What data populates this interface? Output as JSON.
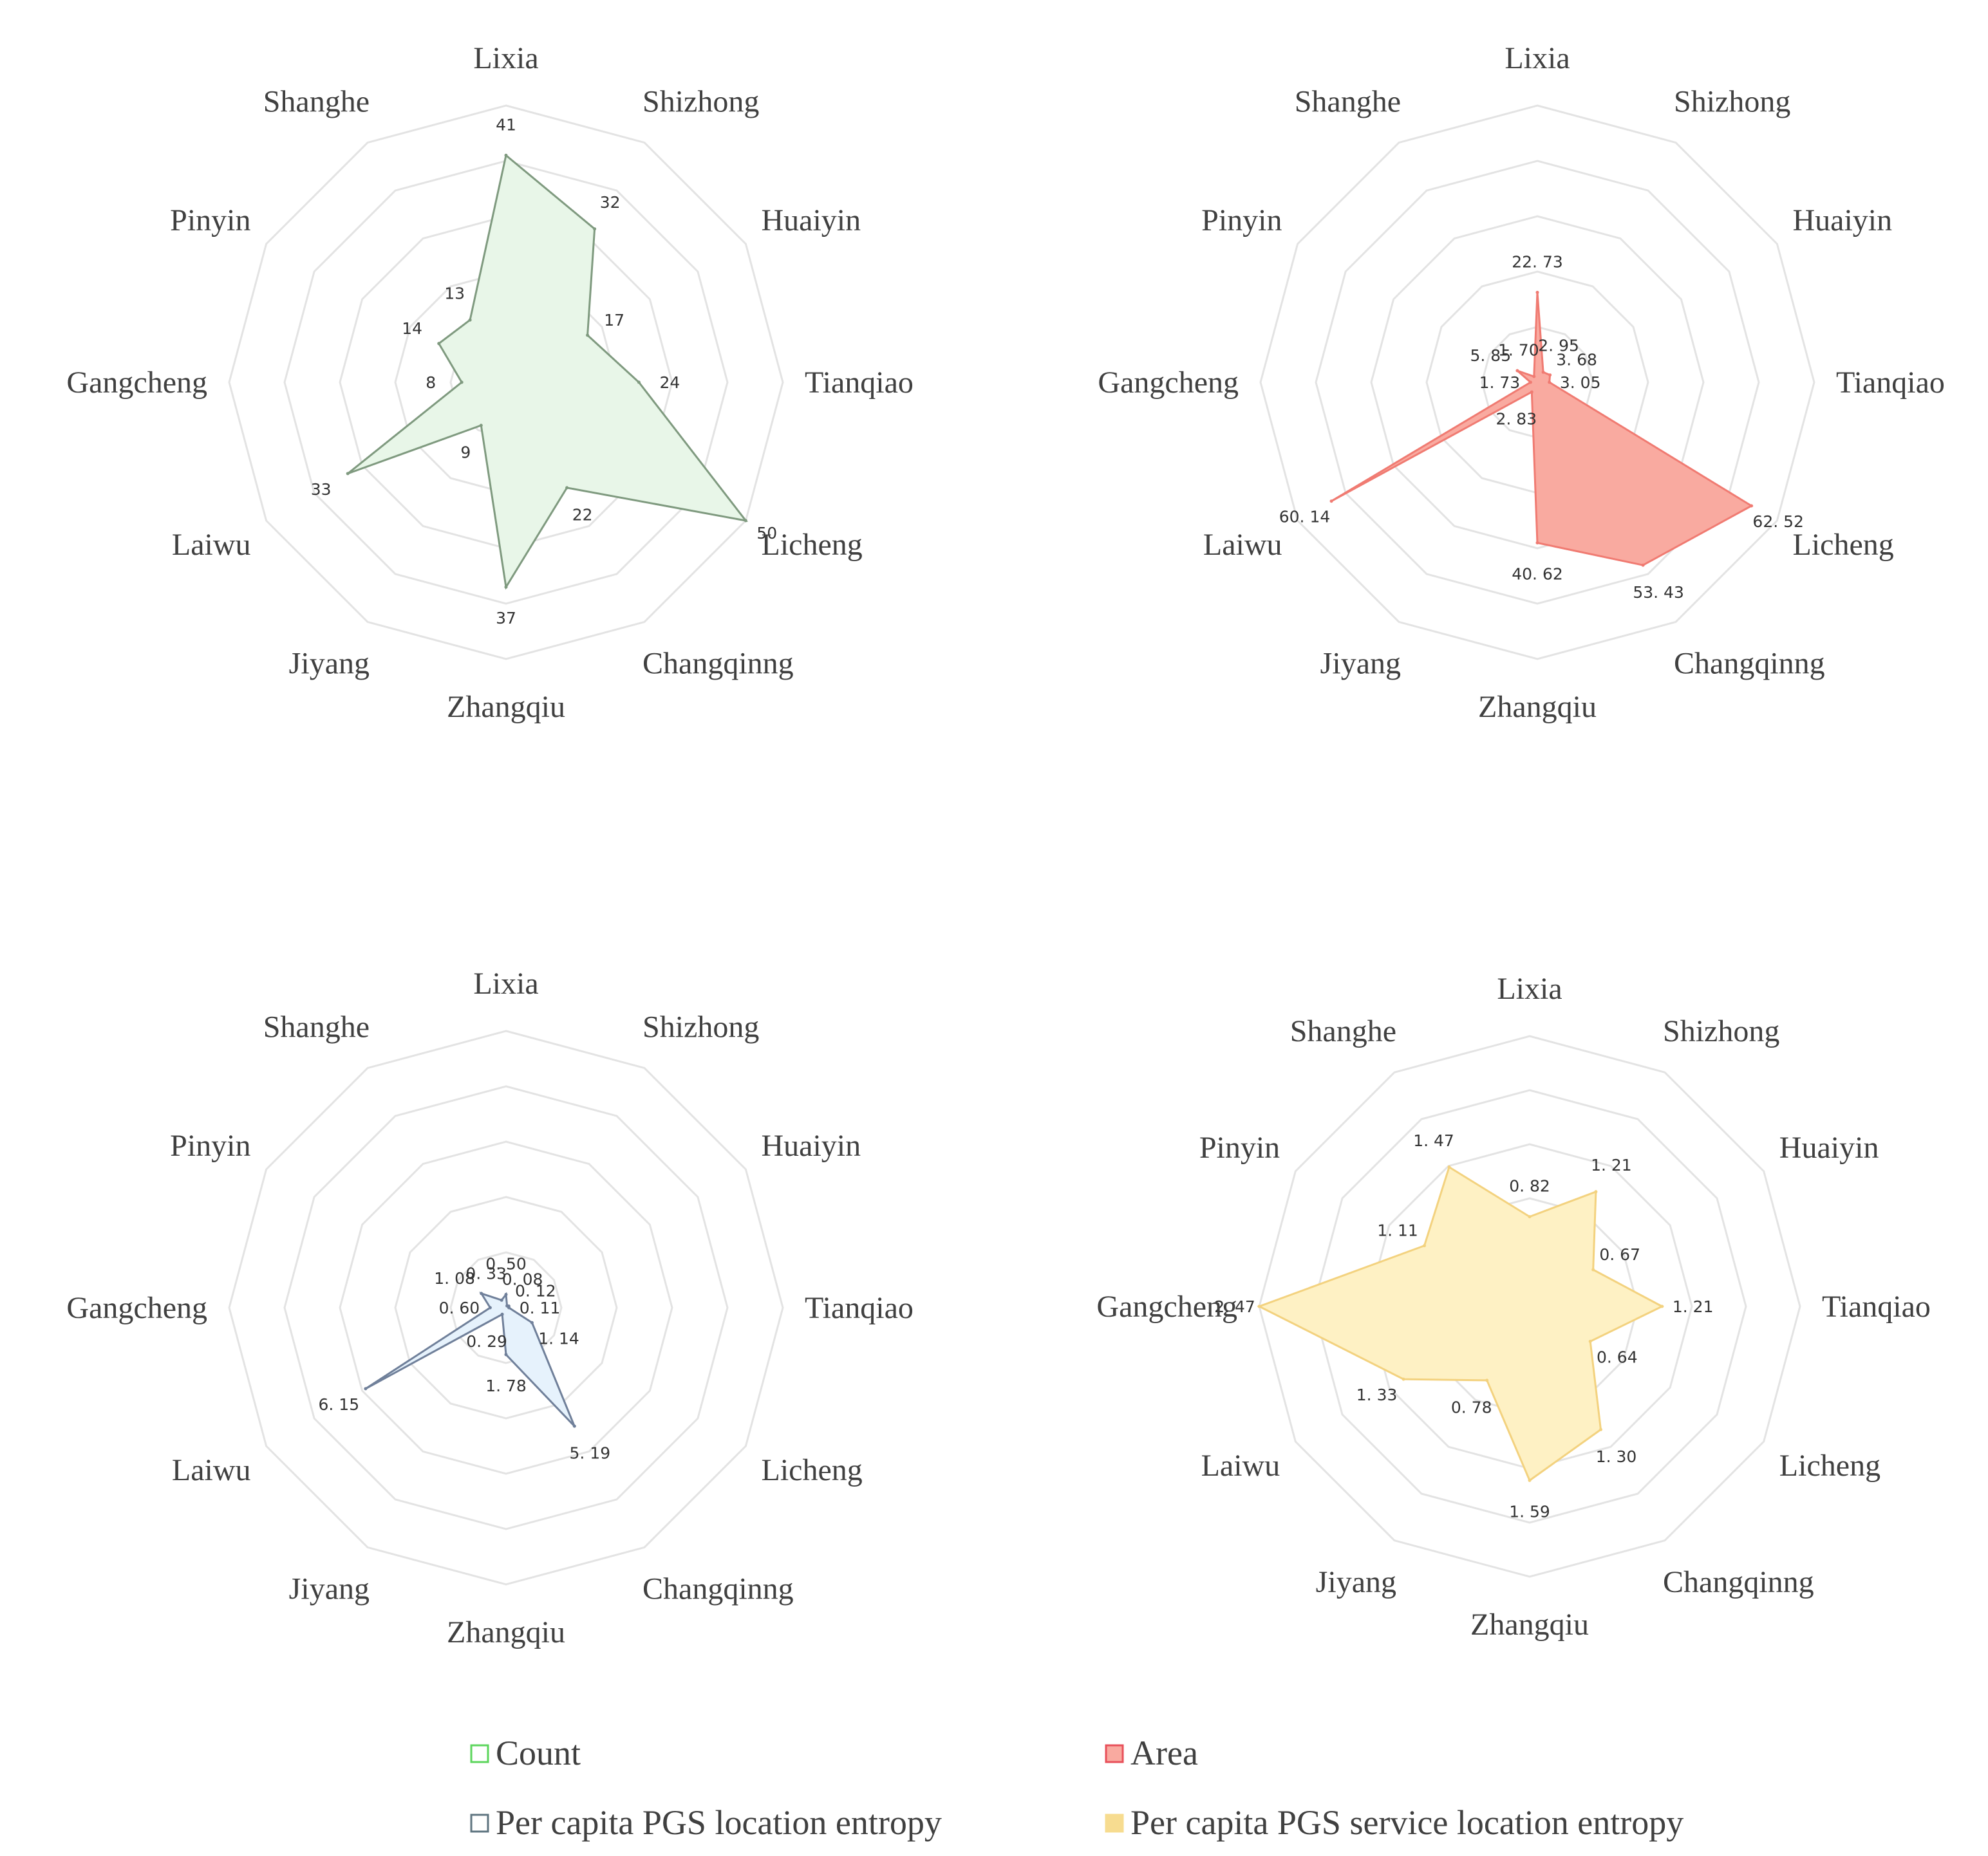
{
  "colors": {
    "grid": "#e3e3e3",
    "axis_label": "#404040",
    "count_fill": "#e8f6e8",
    "count_stroke": "#7f9a7f",
    "count_legend": "#5cd65c",
    "area_fill": "#f9aaa0",
    "area_stroke": "#f07b72",
    "area_legend": "#e8505a",
    "loc_fill": "#e6f2fc",
    "loc_stroke": "#70809a",
    "loc_legend": "#5f7580",
    "svc_fill": "#fef1c4",
    "svc_stroke": "#f3d27f",
    "svc_legend": "#f7dc90"
  },
  "chart_data": [
    {
      "type": "radar",
      "id": "count",
      "categories": [
        "Lixia",
        "Shizhong",
        "Huaiyin",
        "Tianqiao",
        "Licheng",
        "Changqinng",
        "Zhangqiu",
        "Jiyang",
        "Laiwu",
        "Gangcheng",
        "Pinyin",
        "Shanghe"
      ],
      "series": [
        {
          "name": "Count",
          "values": [
            41,
            32,
            17,
            24,
            50,
            22,
            37,
            9,
            33,
            8,
            14,
            13
          ]
        }
      ],
      "value_labels": [
        "41",
        "32",
        "17",
        "24",
        "50",
        "22",
        "37",
        "9",
        "33",
        "8",
        "14",
        "13"
      ],
      "rmax": 50
    },
    {
      "type": "radar",
      "id": "area",
      "categories": [
        "Lixia",
        "Shizhong",
        "Huaiyin",
        "Tianqiao",
        "Licheng",
        "Changqinng",
        "Zhangqiu",
        "Jiyang",
        "Laiwu",
        "Gangcheng",
        "Pinyin",
        "Shanghe"
      ],
      "series": [
        {
          "name": "Area",
          "values": [
            22.73,
            2.95,
            3.68,
            3.05,
            62.52,
            53.43,
            40.62,
            2.83,
            60.14,
            1.73,
            5.85,
            1.7
          ]
        }
      ],
      "value_labels": [
        "22. 73",
        "2. 95",
        "3. 68",
        "3. 05",
        "62. 52",
        "53. 43",
        "40. 62",
        "2. 83",
        "60. 14",
        "1. 73",
        "5. 85",
        "1. 70"
      ],
      "rmax": 70
    },
    {
      "type": "radar",
      "id": "location-entropy",
      "categories": [
        "Lixia",
        "Shizhong",
        "Huaiyin",
        "Tianqiao",
        "Licheng",
        "Changqinng",
        "Zhangqiu",
        "Jiyang",
        "Laiwu",
        "Gangcheng",
        "Pinyin",
        "Shanghe"
      ],
      "series": [
        {
          "name": "Per capita PGS location entropy",
          "values": [
            0.5,
            0.08,
            0.12,
            0.11,
            1.14,
            5.19,
            1.78,
            0.29,
            6.15,
            0.6,
            1.08,
            0.33
          ]
        }
      ],
      "value_labels": [
        "0. 50",
        "0. 08",
        "0. 12",
        "0. 11",
        "1. 14",
        "5. 19",
        "1. 78",
        "0. 29",
        "6. 15",
        "0. 60",
        "1. 08",
        "0. 33"
      ],
      "rmax": 10.5
    },
    {
      "type": "radar",
      "id": "service-location-entropy",
      "categories": [
        "Lixia",
        "Shizhong",
        "Huaiyin",
        "Tianqiao",
        "Licheng",
        "Changqinng",
        "Zhangqiu",
        "Jiyang",
        "Laiwu",
        "Gangcheng",
        "Pinyin",
        "Shanghe"
      ],
      "series": [
        {
          "name": "Per capita PGS service location entropy",
          "values": [
            0.82,
            1.21,
            0.67,
            1.21,
            0.64,
            1.3,
            1.59,
            0.78,
            1.33,
            2.47,
            1.11,
            1.47
          ]
        }
      ],
      "value_labels": [
        "0. 82",
        "1. 21",
        "0. 67",
        "1. 21",
        "0. 64",
        "1. 30",
        "1. 59",
        "0. 78",
        "1. 33",
        "2. 47",
        "1. 11",
        "1. 47"
      ],
      "rmax": 2.47
    }
  ],
  "legend": [
    {
      "label": "Count"
    },
    {
      "label": "Area"
    },
    {
      "label": "Per capita PGS location entropy"
    },
    {
      "label": "Per capita PGS service location entropy"
    }
  ]
}
